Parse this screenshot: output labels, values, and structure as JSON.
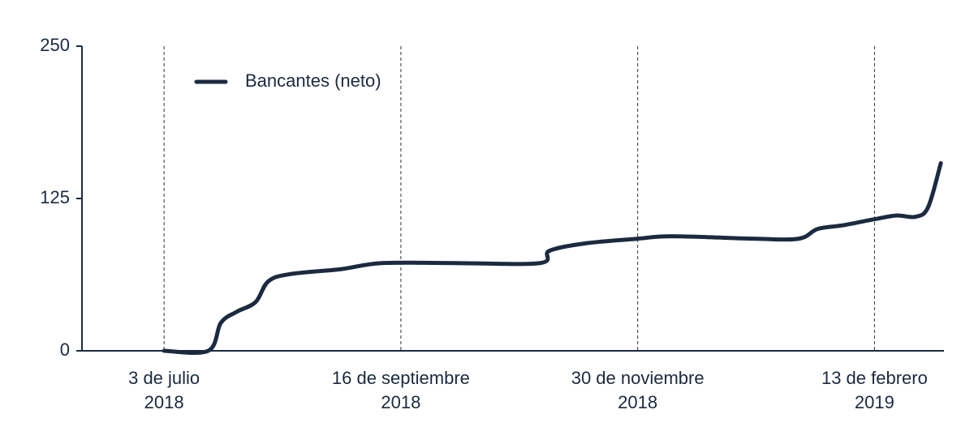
{
  "chart_data": {
    "type": "line",
    "x": [
      "2018-07-03",
      "2018-07-17",
      "2018-07-21",
      "2018-07-26",
      "2018-08-01",
      "2018-08-05",
      "2018-08-12",
      "2018-08-28",
      "2018-09-10",
      "2018-10-03",
      "2018-10-30",
      "2018-11-02",
      "2018-11-13",
      "2018-11-30",
      "2018-12-11",
      "2019-01-06",
      "2019-01-20",
      "2019-01-26",
      "2019-02-03",
      "2019-02-13",
      "2019-02-20",
      "2019-02-26",
      "2019-03-02",
      "2019-03-06"
    ],
    "series": [
      {
        "name": "Bancantes (neto)",
        "color": "#1b2a40",
        "values": [
          0,
          0,
          23,
          32,
          40,
          57,
          63,
          67,
          72,
          72,
          72,
          82,
          88,
          92,
          94,
          92,
          92,
          100,
          103,
          108,
          111,
          110,
          118,
          154
        ]
      }
    ],
    "xlim": [
      "2018-06-07",
      "2019-03-07"
    ],
    "xticks": [
      {
        "value": "2018-07-03",
        "label": "3 de julio\n2018"
      },
      {
        "value": "2018-09-16",
        "label": "16 de septiembre\n2018"
      },
      {
        "value": "2018-11-30",
        "label": "30 de noviembre\n2018"
      },
      {
        "value": "2019-02-13",
        "label": "13 de febrero\n2019"
      }
    ],
    "ylim": [
      0,
      250
    ],
    "yticks": [
      0,
      125,
      250
    ],
    "grid": true,
    "legend": "top-left"
  }
}
